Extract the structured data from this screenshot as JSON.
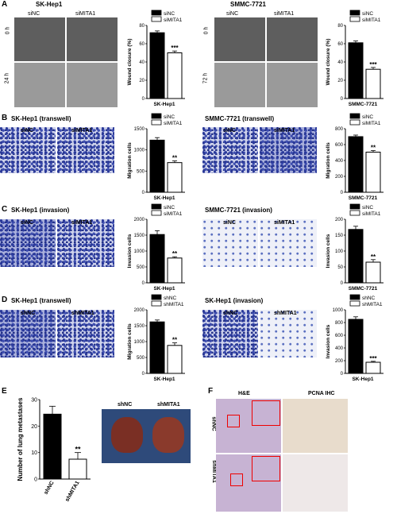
{
  "panels": {
    "A": {
      "label": "A",
      "left": {
        "title": "SK-Hep1",
        "col1": "siNC",
        "col2": "siMITA1",
        "row1": "0 h",
        "row2": "24 h",
        "chart": {
          "ylabel": "Wound closure (%)",
          "xlabel": "SK-Hep1",
          "ymax": 80,
          "ticks": [
            "0",
            "20",
            "40",
            "60",
            "80"
          ],
          "legend": [
            "siNC",
            "siMITA1"
          ],
          "values": [
            72,
            50
          ],
          "errors": [
            2,
            2
          ],
          "sig": "***"
        }
      },
      "right": {
        "title": "SMMC-7721",
        "col1": "siNC",
        "col2": "siMITA1",
        "row1": "0 h",
        "row2": "72 h",
        "chart": {
          "ylabel": "Wound closure (%)",
          "xlabel": "SMMC-7721",
          "ymax": 80,
          "ticks": [
            "0",
            "20",
            "40",
            "60",
            "80"
          ],
          "legend": [
            "siNC",
            "siMITA1"
          ],
          "values": [
            61,
            32
          ],
          "errors": [
            2,
            2
          ],
          "sig": "***"
        }
      }
    },
    "B": {
      "label": "B",
      "left": {
        "title": "SK-Hep1 (transwell)",
        "col1": "siNC",
        "col2": "siMITA1",
        "chart": {
          "ylabel": "Migration cells",
          "xlabel": "SK-Hep1",
          "ymax": 1500,
          "ticks": [
            "0",
            "500",
            "1000",
            "1500"
          ],
          "legend": [
            "siNC",
            "siMITA1"
          ],
          "values": [
            1230,
            700
          ],
          "errors": [
            60,
            40
          ],
          "sig": "**"
        }
      },
      "right": {
        "title": "SMMC-7721 (transwell)",
        "col1": "siNC",
        "col2": "siMITA1",
        "chart": {
          "ylabel": "Migration cells",
          "xlabel": "SMMC-7721",
          "ymax": 800,
          "ticks": [
            "0",
            "200",
            "400",
            "600",
            "800"
          ],
          "legend": [
            "siNC",
            "siMITA1"
          ],
          "values": [
            700,
            505
          ],
          "errors": [
            20,
            20
          ],
          "sig": "**"
        }
      }
    },
    "C": {
      "label": "C",
      "left": {
        "title": "SK-Hep1 (invasion)",
        "col1": "siNC",
        "col2": "siMITA1",
        "chart": {
          "ylabel": "Invasion cells",
          "xlabel": "SK-Hep1",
          "ymax": 2000,
          "ticks": [
            "0",
            "500",
            "1000",
            "1500",
            "2000"
          ],
          "legend": [
            "siNC",
            "siMITA1"
          ],
          "values": [
            1520,
            780
          ],
          "errors": [
            120,
            40
          ],
          "sig": "**"
        }
      },
      "right": {
        "title": "SMMC-7721 (invasion)",
        "col1": "siNC",
        "col2": "siMITA1",
        "chart": {
          "ylabel": "Invasion cells",
          "xlabel": "SMMC-7721",
          "ymax": 200,
          "ticks": [
            "0",
            "50",
            "100",
            "150",
            "200"
          ],
          "legend": [
            "siNC",
            "siMITA1"
          ],
          "values": [
            168,
            65
          ],
          "errors": [
            10,
            8
          ],
          "sig": "**"
        }
      }
    },
    "D": {
      "label": "D",
      "left": {
        "title": "SK-Hep1 (transwell)",
        "col1": "shNC",
        "col2": "shMITA1",
        "chart": {
          "ylabel": "Migration cells",
          "xlabel": "SK-Hep1",
          "ymax": 2000,
          "ticks": [
            "0",
            "500",
            "1000",
            "1500",
            "2000"
          ],
          "legend": [
            "shNC",
            "shMITA1"
          ],
          "values": [
            1620,
            880
          ],
          "errors": [
            60,
            80
          ],
          "sig": "**"
        }
      },
      "right": {
        "title": "SK-Hep1 (invasion)",
        "col1": "shNC",
        "col2": "shMITA1",
        "chart": {
          "ylabel": "Invasion cells",
          "xlabel": "SK-Hep1",
          "ymax": 1000,
          "ticks": [
            "0",
            "200",
            "400",
            "600",
            "800",
            "1000"
          ],
          "legend": [
            "shNC",
            "shMITA1"
          ],
          "values": [
            850,
            175
          ],
          "errors": [
            40,
            15
          ],
          "sig": "***"
        }
      }
    },
    "E": {
      "label": "E",
      "chart": {
        "ylabel": "Number of lung metastases",
        "categories": [
          "shNC",
          "shMITA1"
        ],
        "ymax": 30,
        "ticks": [
          "0",
          "10",
          "20",
          "30"
        ],
        "values": [
          24.5,
          7.5
        ],
        "errors": [
          3,
          2.5
        ],
        "sig": "**"
      },
      "img1": "shNC",
      "img2": "shMITA1"
    },
    "F": {
      "label": "F",
      "col1": "H&E",
      "col2": "PCNA IHC",
      "row1": "shNC",
      "row2": "shMITA1"
    }
  }
}
